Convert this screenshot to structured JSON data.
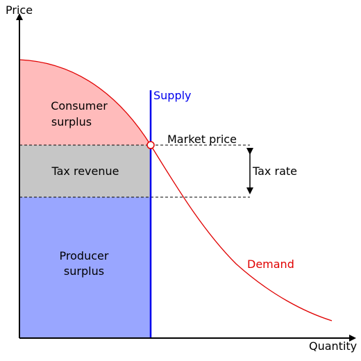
{
  "axes": {
    "y_label": "Price",
    "x_label": "Quantity"
  },
  "regions": {
    "consumer_surplus": [
      "Consumer",
      "surplus"
    ],
    "tax_revenue": "Tax revenue",
    "producer_surplus": [
      "Producer",
      "surplus"
    ]
  },
  "curves": {
    "supply": "Supply",
    "demand": "Demand"
  },
  "annotations": {
    "market_price": "Market price",
    "tax_rate": "Tax rate"
  }
}
